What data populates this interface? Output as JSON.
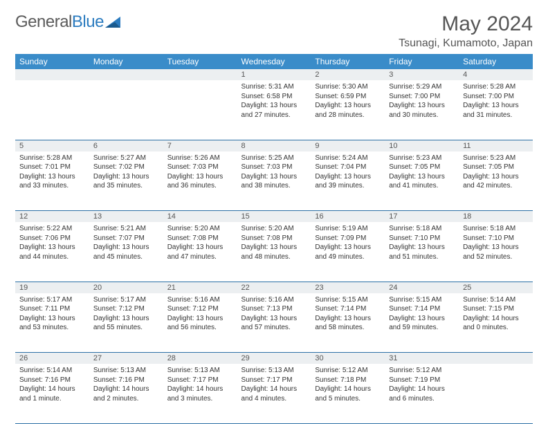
{
  "brand": {
    "part1": "General",
    "part2": "Blue"
  },
  "title": "May 2024",
  "location": "Tsunagi, Kumamoto, Japan",
  "colors": {
    "header_bg": "#3a8cc9",
    "header_text": "#ffffff",
    "daynum_bg": "#eceff1",
    "cell_border": "#2b6fa5",
    "brand_gray": "#5a5a5a",
    "brand_blue": "#2b7bbf",
    "body_text": "#333333"
  },
  "weekdays": [
    "Sunday",
    "Monday",
    "Tuesday",
    "Wednesday",
    "Thursday",
    "Friday",
    "Saturday"
  ],
  "weeks": [
    {
      "nums": [
        "",
        "",
        "",
        "1",
        "2",
        "3",
        "4"
      ],
      "cells": [
        {
          "lines": []
        },
        {
          "lines": []
        },
        {
          "lines": []
        },
        {
          "lines": [
            "Sunrise: 5:31 AM",
            "Sunset: 6:58 PM",
            "Daylight: 13 hours",
            "and 27 minutes."
          ]
        },
        {
          "lines": [
            "Sunrise: 5:30 AM",
            "Sunset: 6:59 PM",
            "Daylight: 13 hours",
            "and 28 minutes."
          ]
        },
        {
          "lines": [
            "Sunrise: 5:29 AM",
            "Sunset: 7:00 PM",
            "Daylight: 13 hours",
            "and 30 minutes."
          ]
        },
        {
          "lines": [
            "Sunrise: 5:28 AM",
            "Sunset: 7:00 PM",
            "Daylight: 13 hours",
            "and 31 minutes."
          ]
        }
      ]
    },
    {
      "nums": [
        "5",
        "6",
        "7",
        "8",
        "9",
        "10",
        "11"
      ],
      "cells": [
        {
          "lines": [
            "Sunrise: 5:28 AM",
            "Sunset: 7:01 PM",
            "Daylight: 13 hours",
            "and 33 minutes."
          ]
        },
        {
          "lines": [
            "Sunrise: 5:27 AM",
            "Sunset: 7:02 PM",
            "Daylight: 13 hours",
            "and 35 minutes."
          ]
        },
        {
          "lines": [
            "Sunrise: 5:26 AM",
            "Sunset: 7:03 PM",
            "Daylight: 13 hours",
            "and 36 minutes."
          ]
        },
        {
          "lines": [
            "Sunrise: 5:25 AM",
            "Sunset: 7:03 PM",
            "Daylight: 13 hours",
            "and 38 minutes."
          ]
        },
        {
          "lines": [
            "Sunrise: 5:24 AM",
            "Sunset: 7:04 PM",
            "Daylight: 13 hours",
            "and 39 minutes."
          ]
        },
        {
          "lines": [
            "Sunrise: 5:23 AM",
            "Sunset: 7:05 PM",
            "Daylight: 13 hours",
            "and 41 minutes."
          ]
        },
        {
          "lines": [
            "Sunrise: 5:23 AM",
            "Sunset: 7:05 PM",
            "Daylight: 13 hours",
            "and 42 minutes."
          ]
        }
      ]
    },
    {
      "nums": [
        "12",
        "13",
        "14",
        "15",
        "16",
        "17",
        "18"
      ],
      "cells": [
        {
          "lines": [
            "Sunrise: 5:22 AM",
            "Sunset: 7:06 PM",
            "Daylight: 13 hours",
            "and 44 minutes."
          ]
        },
        {
          "lines": [
            "Sunrise: 5:21 AM",
            "Sunset: 7:07 PM",
            "Daylight: 13 hours",
            "and 45 minutes."
          ]
        },
        {
          "lines": [
            "Sunrise: 5:20 AM",
            "Sunset: 7:08 PM",
            "Daylight: 13 hours",
            "and 47 minutes."
          ]
        },
        {
          "lines": [
            "Sunrise: 5:20 AM",
            "Sunset: 7:08 PM",
            "Daylight: 13 hours",
            "and 48 minutes."
          ]
        },
        {
          "lines": [
            "Sunrise: 5:19 AM",
            "Sunset: 7:09 PM",
            "Daylight: 13 hours",
            "and 49 minutes."
          ]
        },
        {
          "lines": [
            "Sunrise: 5:18 AM",
            "Sunset: 7:10 PM",
            "Daylight: 13 hours",
            "and 51 minutes."
          ]
        },
        {
          "lines": [
            "Sunrise: 5:18 AM",
            "Sunset: 7:10 PM",
            "Daylight: 13 hours",
            "and 52 minutes."
          ]
        }
      ]
    },
    {
      "nums": [
        "19",
        "20",
        "21",
        "22",
        "23",
        "24",
        "25"
      ],
      "cells": [
        {
          "lines": [
            "Sunrise: 5:17 AM",
            "Sunset: 7:11 PM",
            "Daylight: 13 hours",
            "and 53 minutes."
          ]
        },
        {
          "lines": [
            "Sunrise: 5:17 AM",
            "Sunset: 7:12 PM",
            "Daylight: 13 hours",
            "and 55 minutes."
          ]
        },
        {
          "lines": [
            "Sunrise: 5:16 AM",
            "Sunset: 7:12 PM",
            "Daylight: 13 hours",
            "and 56 minutes."
          ]
        },
        {
          "lines": [
            "Sunrise: 5:16 AM",
            "Sunset: 7:13 PM",
            "Daylight: 13 hours",
            "and 57 minutes."
          ]
        },
        {
          "lines": [
            "Sunrise: 5:15 AM",
            "Sunset: 7:14 PM",
            "Daylight: 13 hours",
            "and 58 minutes."
          ]
        },
        {
          "lines": [
            "Sunrise: 5:15 AM",
            "Sunset: 7:14 PM",
            "Daylight: 13 hours",
            "and 59 minutes."
          ]
        },
        {
          "lines": [
            "Sunrise: 5:14 AM",
            "Sunset: 7:15 PM",
            "Daylight: 14 hours",
            "and 0 minutes."
          ]
        }
      ]
    },
    {
      "nums": [
        "26",
        "27",
        "28",
        "29",
        "30",
        "31",
        ""
      ],
      "cells": [
        {
          "lines": [
            "Sunrise: 5:14 AM",
            "Sunset: 7:16 PM",
            "Daylight: 14 hours",
            "and 1 minute."
          ]
        },
        {
          "lines": [
            "Sunrise: 5:13 AM",
            "Sunset: 7:16 PM",
            "Daylight: 14 hours",
            "and 2 minutes."
          ]
        },
        {
          "lines": [
            "Sunrise: 5:13 AM",
            "Sunset: 7:17 PM",
            "Daylight: 14 hours",
            "and 3 minutes."
          ]
        },
        {
          "lines": [
            "Sunrise: 5:13 AM",
            "Sunset: 7:17 PM",
            "Daylight: 14 hours",
            "and 4 minutes."
          ]
        },
        {
          "lines": [
            "Sunrise: 5:12 AM",
            "Sunset: 7:18 PM",
            "Daylight: 14 hours",
            "and 5 minutes."
          ]
        },
        {
          "lines": [
            "Sunrise: 5:12 AM",
            "Sunset: 7:19 PM",
            "Daylight: 14 hours",
            "and 6 minutes."
          ]
        },
        {
          "lines": []
        }
      ]
    }
  ]
}
